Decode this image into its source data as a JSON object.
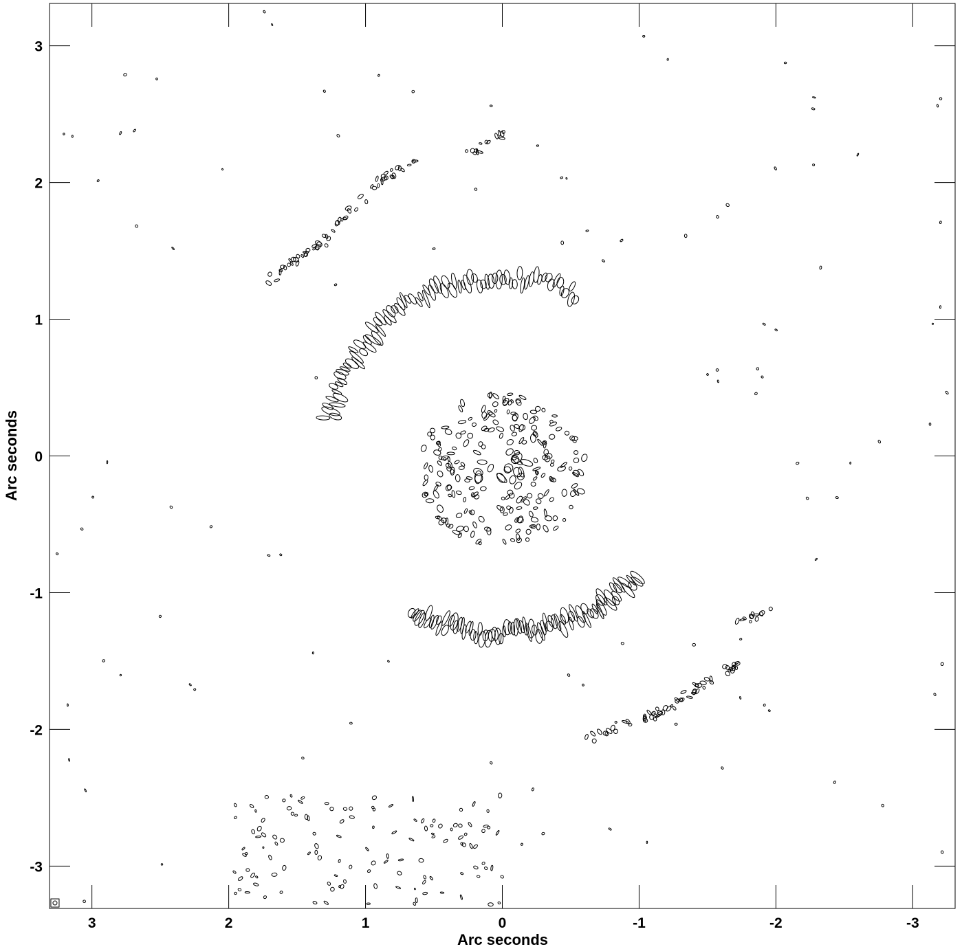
{
  "chart_data": {
    "type": "contour",
    "title": "",
    "xlabel": "Arc seconds",
    "ylabel": "Arc seconds",
    "xlim": [
      3.31,
      -3.31
    ],
    "ylim": [
      -3.31,
      3.31
    ],
    "x_ticks": [
      3,
      2,
      1,
      0,
      -1,
      -2,
      -3
    ],
    "y_ticks": [
      3,
      2,
      1,
      0,
      -1,
      -2,
      -3
    ],
    "x_tick_labels": [
      "3",
      "2",
      "1",
      "0",
      "-1",
      "-2",
      "-3"
    ],
    "y_tick_labels": [
      "3",
      "2",
      "1",
      "0",
      "-1",
      "-2",
      "-3"
    ],
    "line_color": "#000000",
    "background": "#ffffff",
    "features": {
      "inner_arc_north": {
        "center": [
          0.0,
          0.0
        ],
        "radius": 1.3,
        "start_deg": 65,
        "end_deg": 168,
        "width": 0.1
      },
      "inner_arc_south": {
        "center": [
          0.0,
          0.0
        ],
        "radius": 1.3,
        "start_deg": 240,
        "end_deg": 318,
        "width": 0.1
      },
      "core": {
        "center": [
          0.0,
          -0.1
        ],
        "radius": 0.62
      },
      "outer_arm_north": {
        "points": [
          [
            1.7,
            1.28
          ],
          [
            1.3,
            1.58
          ],
          [
            0.9,
            2.0
          ],
          [
            0.6,
            2.2
          ]
        ]
      },
      "outer_arm_north_b": {
        "points": [
          [
            0.25,
            2.2
          ],
          [
            0.0,
            2.35
          ]
        ]
      },
      "outer_arm_south": {
        "points": [
          [
            -0.6,
            -2.08
          ],
          [
            -1.1,
            -1.9
          ],
          [
            -1.6,
            -1.6
          ],
          [
            -1.75,
            -1.5
          ]
        ]
      },
      "outer_arm_south_b": {
        "points": [
          [
            -1.7,
            -1.25
          ],
          [
            -1.95,
            -1.12
          ]
        ]
      },
      "lower_left_cluster": {
        "x_range": [
          0.0,
          2.0
        ],
        "y_range": [
          -3.31,
          -2.5
        ]
      }
    },
    "beam": {
      "x": 3.27,
      "y": -3.27
    }
  }
}
